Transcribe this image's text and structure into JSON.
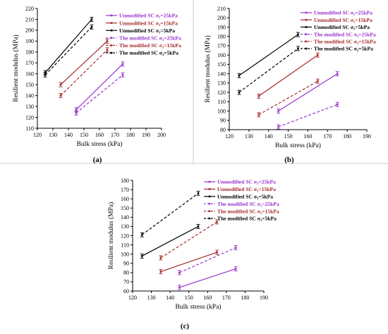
{
  "series_styles": [
    {
      "color": "#9932CC",
      "dash": "solid"
    },
    {
      "color": "#A52A2A",
      "dash": "solid"
    },
    {
      "color": "#000000",
      "dash": "solid"
    },
    {
      "color": "#9932CC",
      "dash": "dashed"
    },
    {
      "color": "#A52A2A",
      "dash": "dashed"
    },
    {
      "color": "#000000",
      "dash": "dashed"
    }
  ],
  "chart_data": [
    {
      "type": "line",
      "panel_label": "(a)",
      "xlabel": "Bulk stress (kPa)",
      "ylabel": "Resilient modulus (MPa)",
      "xlim": [
        120,
        200
      ],
      "ylim": [
        110,
        220
      ],
      "xticks": [
        120,
        130,
        140,
        150,
        160,
        170,
        180,
        190,
        200
      ],
      "yticks": [
        110,
        120,
        130,
        140,
        150,
        160,
        170,
        180,
        190,
        200,
        210,
        220
      ],
      "legend_position": "top-right",
      "series": [
        {
          "name": "Unmodified SC σ₃=25kPa",
          "x": [
            145,
            175
          ],
          "y": [
            127,
            169
          ]
        },
        {
          "name": "Unmodified SC σ₃=15kPa",
          "x": [
            135,
            165
          ],
          "y": [
            150,
            190
          ]
        },
        {
          "name": "Unmodified SC σ₃=5kPa",
          "x": [
            125,
            155
          ],
          "y": [
            161,
            210
          ]
        },
        {
          "name": "The modified SC σ₃=25kPa",
          "x": [
            145,
            175
          ],
          "y": [
            124,
            159
          ]
        },
        {
          "name": "The modified SC σ₃=15kPa",
          "x": [
            135,
            165
          ],
          "y": [
            140,
            182
          ]
        },
        {
          "name": "The modified SC σ₃=5kPa",
          "x": [
            125,
            155
          ],
          "y": [
            159,
            203
          ]
        }
      ]
    },
    {
      "type": "line",
      "panel_label": "(b)",
      "xlabel": "Bulk stress (kPa)",
      "ylabel": "Resilient modulus (MPa)",
      "xlim": [
        120,
        190
      ],
      "ylim": [
        80,
        210
      ],
      "xticks": [
        120,
        130,
        140,
        150,
        160,
        170,
        180,
        190
      ],
      "yticks": [
        80,
        90,
        100,
        110,
        120,
        130,
        140,
        150,
        160,
        170,
        180,
        190,
        200,
        210
      ],
      "legend_position": "top-right",
      "series": [
        {
          "name": "Unmodified SC σ₃=25kPa",
          "x": [
            145,
            175
          ],
          "y": [
            100,
            140
          ]
        },
        {
          "name": "Unmodified SC σ₃=15kPa",
          "x": [
            135,
            165
          ],
          "y": [
            116,
            160
          ]
        },
        {
          "name": "Unmodified SC σ₃=5kPa",
          "x": [
            125,
            155
          ],
          "y": [
            138,
            182
          ]
        },
        {
          "name": "The modified SC σ₃=25kPa",
          "x": [
            145,
            175
          ],
          "y": [
            83,
            107
          ]
        },
        {
          "name": "The modified SC σ₃=15kPa",
          "x": [
            135,
            165
          ],
          "y": [
            96,
            132
          ]
        },
        {
          "name": "The modified SC σ₃=5kPa",
          "x": [
            125,
            155
          ],
          "y": [
            120,
            167
          ]
        }
      ]
    },
    {
      "type": "line",
      "panel_label": "(c)",
      "xlabel": "Bulk stress (kPa)",
      "ylabel": "Resilient modulus (MPa)",
      "xlim": [
        120,
        190
      ],
      "ylim": [
        60,
        180
      ],
      "xticks": [
        120,
        130,
        140,
        150,
        160,
        170,
        180,
        190
      ],
      "yticks": [
        60,
        70,
        80,
        90,
        100,
        110,
        120,
        130,
        140,
        150,
        160,
        170,
        180
      ],
      "legend_position": "top-right",
      "series": [
        {
          "name": "Unmodified SC σ₃=25kPa",
          "x": [
            145,
            175
          ],
          "y": [
            64,
            84
          ]
        },
        {
          "name": "Unmodified SC σ₃=15kPa",
          "x": [
            135,
            165
          ],
          "y": [
            81,
            102
          ]
        },
        {
          "name": "Unmodified SC σ₃=5kPa",
          "x": [
            125,
            155
          ],
          "y": [
            98,
            130
          ]
        },
        {
          "name": "The modified SC σ₃=25kPa",
          "x": [
            145,
            175
          ],
          "y": [
            80,
            107
          ]
        },
        {
          "name": "The modified SC σ₃=15kPa",
          "x": [
            135,
            165
          ],
          "y": [
            96,
            135
          ]
        },
        {
          "name": "The modified SC σ₃=5kPa",
          "x": [
            125,
            155
          ],
          "y": [
            121,
            166
          ]
        }
      ]
    }
  ]
}
